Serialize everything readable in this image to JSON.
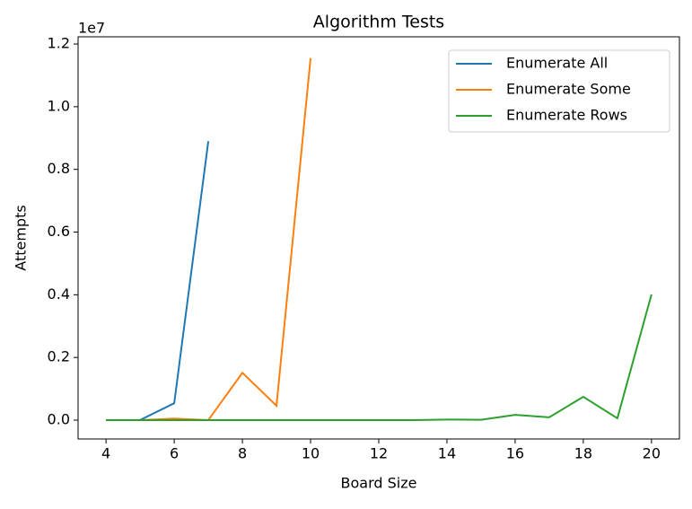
{
  "chart_data": {
    "type": "line",
    "title": "Algorithm Tests",
    "xlabel": "Board Size",
    "ylabel": "Attempts",
    "y_offset_label": "1e7",
    "series": [
      {
        "name": "Enumerate All",
        "color": "#1f77b4",
        "x": [
          4,
          5,
          6,
          7
        ],
        "values": [
          0,
          3000,
          540000,
          8900000
        ]
      },
      {
        "name": "Enumerate Some",
        "color": "#ff7f0e",
        "x": [
          4,
          5,
          6,
          7,
          8,
          9,
          10
        ],
        "values": [
          0,
          0,
          50000,
          0,
          1510000,
          460000,
          11550000
        ]
      },
      {
        "name": "Enumerate Rows",
        "color": "#2ca02c",
        "x": [
          4,
          5,
          6,
          7,
          8,
          9,
          10,
          11,
          12,
          13,
          14,
          15,
          16,
          17,
          18,
          19,
          20
        ],
        "values": [
          0,
          0,
          0,
          0,
          0,
          0,
          0,
          0,
          0,
          0,
          20000,
          10000,
          170000,
          90000,
          745000,
          60000,
          4010000
        ]
      }
    ],
    "xlim": [
      3.18,
      20.82
    ],
    "xticks": [
      4,
      6,
      8,
      10,
      12,
      14,
      16,
      18,
      20
    ],
    "ylim": [
      -601000,
      12230000
    ],
    "yticks": [
      {
        "value": 0,
        "label": "0.0"
      },
      {
        "value": 2000000,
        "label": "0.2"
      },
      {
        "value": 4000000,
        "label": "0.4"
      },
      {
        "value": 6000000,
        "label": "0.6"
      },
      {
        "value": 8000000,
        "label": "0.8"
      },
      {
        "value": 10000000,
        "label": "1.0"
      },
      {
        "value": 12000000,
        "label": "1.2"
      }
    ],
    "legend": "upper right"
  }
}
